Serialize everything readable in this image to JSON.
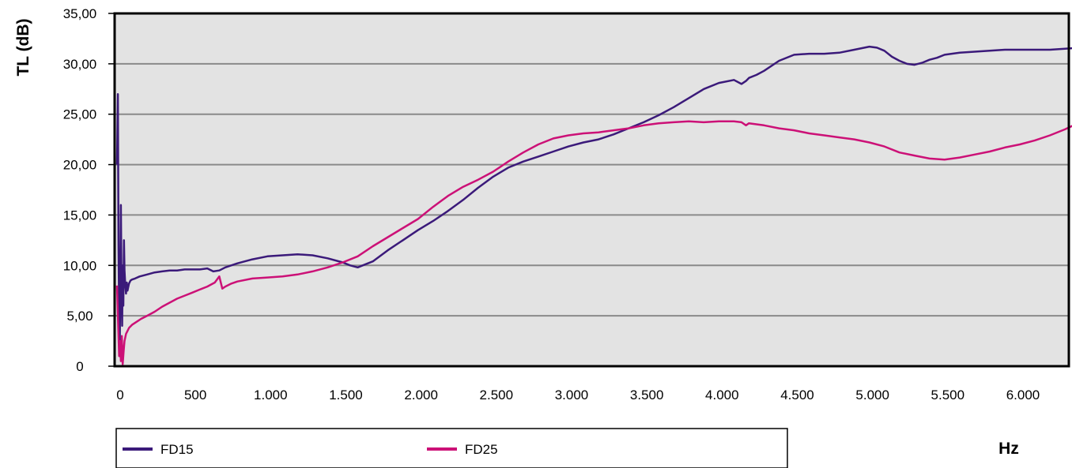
{
  "chart_data": {
    "type": "line",
    "title": "",
    "xlabel": "Hz",
    "ylabel": "TL (dB)",
    "xlim": [
      0,
      6400
    ],
    "ylim": [
      0,
      35
    ],
    "grid": true,
    "legend": "bottom",
    "x_ticks": [
      {
        "value": 0,
        "label": "0"
      },
      {
        "value": 500,
        "label": "500"
      },
      {
        "value": 1000,
        "label": "1.000"
      },
      {
        "value": 1500,
        "label": "1.500"
      },
      {
        "value": 2000,
        "label": "2.000"
      },
      {
        "value": 2500,
        "label": "2.500"
      },
      {
        "value": 3000,
        "label": "3.000"
      },
      {
        "value": 3500,
        "label": "3.500"
      },
      {
        "value": 4000,
        "label": "4.000"
      },
      {
        "value": 4500,
        "label": "4.500"
      },
      {
        "value": 5000,
        "label": "5.000"
      },
      {
        "value": 5500,
        "label": "5.500"
      },
      {
        "value": 6000,
        "label": "6.000"
      }
    ],
    "y_ticks": [
      {
        "value": 0,
        "label": "0"
      },
      {
        "value": 5,
        "label": "5,00"
      },
      {
        "value": 10,
        "label": "10,00"
      },
      {
        "value": 15,
        "label": "15,00"
      },
      {
        "value": 20,
        "label": "20,00"
      },
      {
        "value": 25,
        "label": "25,00"
      },
      {
        "value": 30,
        "label": "30,00"
      },
      {
        "value": 35,
        "label": "35,00"
      }
    ],
    "series": [
      {
        "name": "FD15",
        "color": "#3b1a7a",
        "x": [
          0,
          6,
          10,
          14,
          18,
          22,
          26,
          30,
          34,
          38,
          42,
          46,
          50,
          55,
          60,
          65,
          70,
          80,
          90,
          100,
          120,
          150,
          200,
          250,
          300,
          350,
          400,
          450,
          500,
          550,
          600,
          640,
          680,
          720,
          800,
          900,
          1000,
          1100,
          1200,
          1300,
          1400,
          1500,
          1550,
          1600,
          1700,
          1800,
          1900,
          2000,
          2100,
          2200,
          2300,
          2400,
          2500,
          2600,
          2700,
          2800,
          2900,
          3000,
          3100,
          3200,
          3300,
          3400,
          3500,
          3600,
          3700,
          3800,
          3900,
          4000,
          4100,
          4150,
          4180,
          4200,
          4250,
          4300,
          4400,
          4500,
          4600,
          4700,
          4800,
          4900,
          5000,
          5050,
          5100,
          5150,
          5200,
          5250,
          5300,
          5350,
          5400,
          5450,
          5500,
          5600,
          5700,
          5800,
          5900,
          6000,
          6100,
          6200,
          6300,
          6400
        ],
        "y": [
          20,
          27,
          12,
          5,
          1,
          9,
          16,
          8,
          4,
          10,
          6,
          12.5,
          9.5,
          8,
          7.2,
          8.3,
          7.5,
          8.2,
          8.5,
          8.6,
          8.7,
          8.9,
          9.1,
          9.3,
          9.4,
          9.5,
          9.5,
          9.6,
          9.6,
          9.6,
          9.7,
          9.4,
          9.5,
          9.8,
          10.2,
          10.6,
          10.9,
          11.0,
          11.1,
          11.0,
          10.7,
          10.3,
          10.0,
          9.8,
          10.4,
          11.5,
          12.5,
          13.5,
          14.4,
          15.4,
          16.5,
          17.7,
          18.8,
          19.7,
          20.3,
          20.8,
          21.3,
          21.8,
          22.2,
          22.5,
          23.0,
          23.6,
          24.2,
          24.9,
          25.7,
          26.6,
          27.5,
          28.1,
          28.4,
          28.0,
          28.3,
          28.6,
          28.9,
          29.3,
          30.3,
          30.9,
          31.0,
          31.0,
          31.1,
          31.4,
          31.7,
          31.6,
          31.3,
          30.7,
          30.3,
          30.0,
          29.9,
          30.1,
          30.4,
          30.6,
          30.9,
          31.1,
          31.2,
          31.3,
          31.4,
          31.4,
          31.4,
          31.4,
          31.5,
          31.6
        ]
      },
      {
        "name": "FD25",
        "color": "#cc1177",
        "x": [
          0,
          8,
          14,
          20,
          26,
          32,
          38,
          44,
          50,
          60,
          70,
          80,
          100,
          130,
          160,
          200,
          250,
          300,
          350,
          400,
          450,
          500,
          550,
          600,
          650,
          680,
          700,
          720,
          760,
          800,
          900,
          1000,
          1100,
          1200,
          1300,
          1400,
          1500,
          1600,
          1700,
          1800,
          1900,
          2000,
          2100,
          2200,
          2300,
          2400,
          2500,
          2600,
          2700,
          2800,
          2900,
          3000,
          3100,
          3200,
          3300,
          3400,
          3500,
          3600,
          3700,
          3800,
          3900,
          4000,
          4100,
          4150,
          4180,
          4200,
          4300,
          4400,
          4500,
          4600,
          4700,
          4800,
          4900,
          5000,
          5100,
          5200,
          5300,
          5400,
          5500,
          5600,
          5700,
          5800,
          5900,
          6000,
          6100,
          6200,
          6300,
          6400
        ],
        "y": [
          8,
          4,
          1,
          2.5,
          0.5,
          3,
          0.2,
          1.5,
          2.5,
          3.2,
          3.5,
          3.8,
          4.1,
          4.4,
          4.7,
          5.0,
          5.4,
          5.9,
          6.3,
          6.7,
          7.0,
          7.3,
          7.6,
          7.9,
          8.3,
          8.9,
          7.7,
          7.9,
          8.2,
          8.4,
          8.7,
          8.8,
          8.9,
          9.1,
          9.4,
          9.8,
          10.3,
          10.9,
          11.9,
          12.8,
          13.7,
          14.6,
          15.8,
          16.9,
          17.8,
          18.5,
          19.3,
          20.3,
          21.2,
          22.0,
          22.6,
          22.9,
          23.1,
          23.2,
          23.4,
          23.6,
          23.9,
          24.1,
          24.2,
          24.3,
          24.2,
          24.3,
          24.3,
          24.2,
          23.9,
          24.1,
          23.9,
          23.6,
          23.4,
          23.1,
          22.9,
          22.7,
          22.5,
          22.2,
          21.8,
          21.2,
          20.9,
          20.6,
          20.5,
          20.7,
          21.0,
          21.3,
          21.7,
          22.0,
          22.4,
          22.9,
          23.5,
          24.2
        ]
      }
    ]
  }
}
